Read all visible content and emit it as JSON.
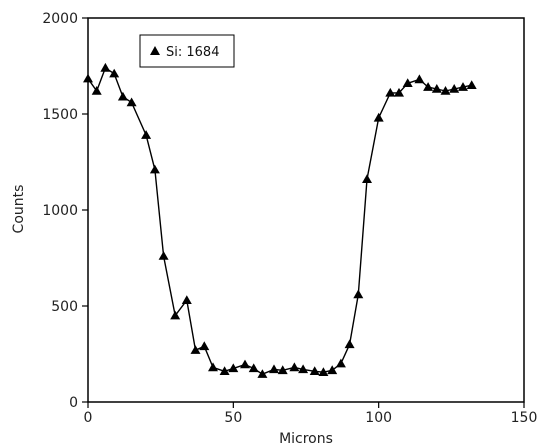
{
  "chart_data": {
    "type": "line",
    "xlabel": "Microns",
    "ylabel": "Counts",
    "xlim": [
      0,
      150
    ],
    "ylim": [
      0,
      2000
    ],
    "xticks": [
      0,
      50,
      100,
      150
    ],
    "yticks": [
      0,
      500,
      1000,
      1500,
      2000
    ],
    "grid": false,
    "legend_position": "top-left",
    "series": [
      {
        "name": "Si: 1684",
        "marker": "triangle",
        "color": "#000000",
        "x": [
          0,
          3,
          6,
          9,
          12,
          15,
          20,
          23,
          26,
          30,
          34,
          37,
          40,
          43,
          47,
          50,
          54,
          57,
          60,
          64,
          67,
          71,
          74,
          78,
          81,
          84,
          87,
          90,
          93,
          96,
          100,
          104,
          107,
          110,
          114,
          117,
          120,
          123,
          126,
          129,
          132
        ],
        "y": [
          1684,
          1620,
          1740,
          1710,
          1590,
          1560,
          1390,
          1210,
          760,
          450,
          530,
          270,
          290,
          180,
          160,
          175,
          195,
          175,
          145,
          170,
          165,
          180,
          170,
          160,
          155,
          165,
          200,
          300,
          560,
          1160,
          1480,
          1610,
          1610,
          1660,
          1680,
          1640,
          1630,
          1620,
          1630,
          1640,
          1650
        ]
      }
    ]
  }
}
